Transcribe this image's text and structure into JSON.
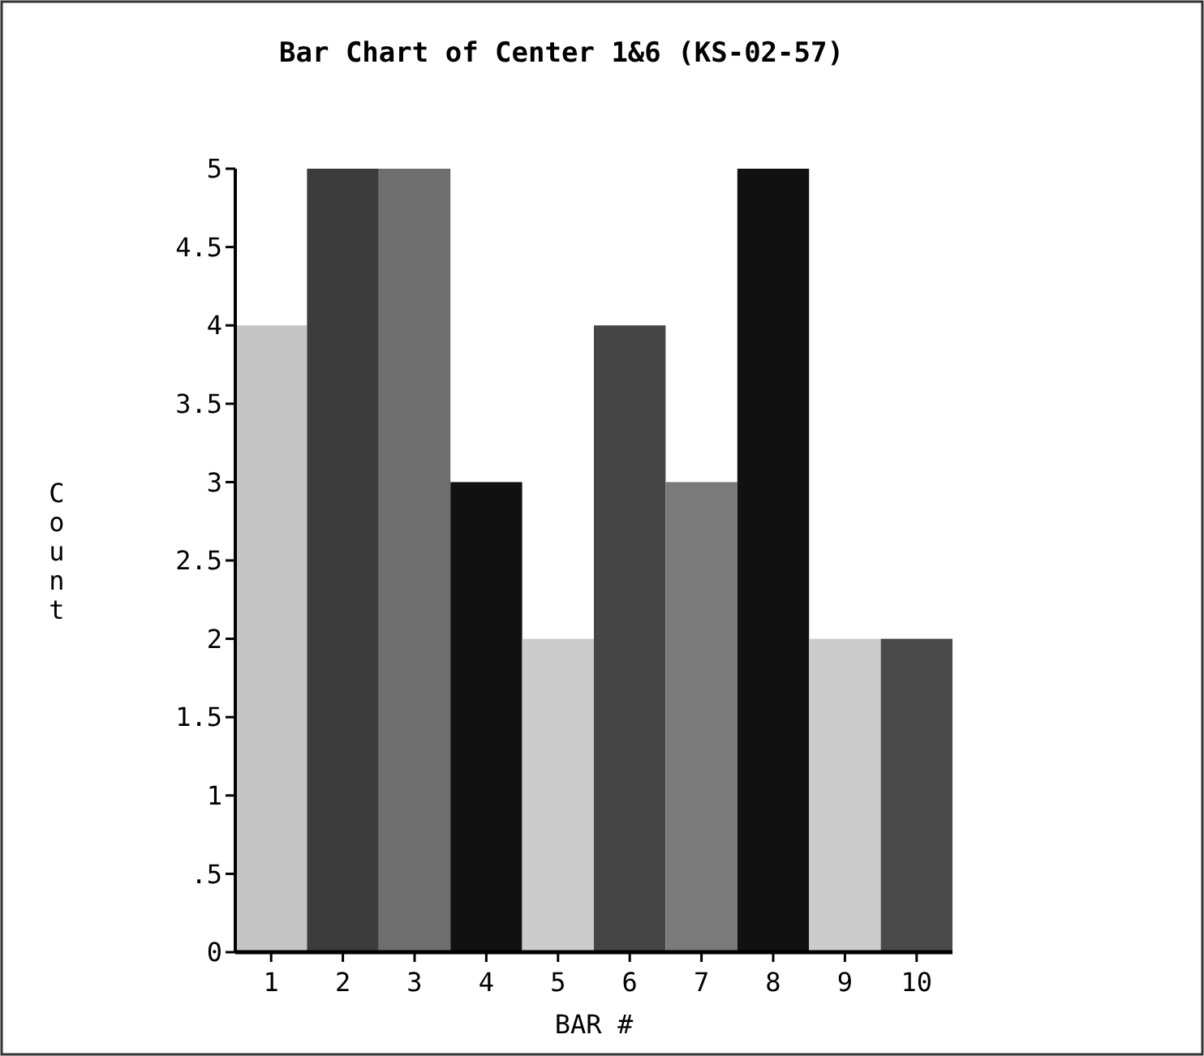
{
  "chart_data": {
    "type": "bar",
    "title": "Bar Chart of Center 1&6 (KS-02-57)",
    "xlabel": "BAR #",
    "ylabel": "Count",
    "categories": [
      "1",
      "2",
      "3",
      "4",
      "5",
      "6",
      "7",
      "8",
      "9",
      "10"
    ],
    "values": [
      4,
      5,
      5,
      3,
      2,
      4,
      3,
      5,
      2,
      2
    ],
    "colors": [
      "#c4c4c4",
      "#3c3c3c",
      "#6e6e6e",
      "#111111",
      "#cccccc",
      "#454545",
      "#7a7a7a",
      "#111111",
      "#cccccc",
      "#4a4a4a"
    ],
    "ylim": [
      0,
      5
    ],
    "yticks": [
      0,
      {
        "value": 0.5,
        "label": ".5"
      },
      1,
      1.5,
      2,
      2.5,
      3,
      3.5,
      4,
      4.5,
      5
    ],
    "grid": false
  }
}
